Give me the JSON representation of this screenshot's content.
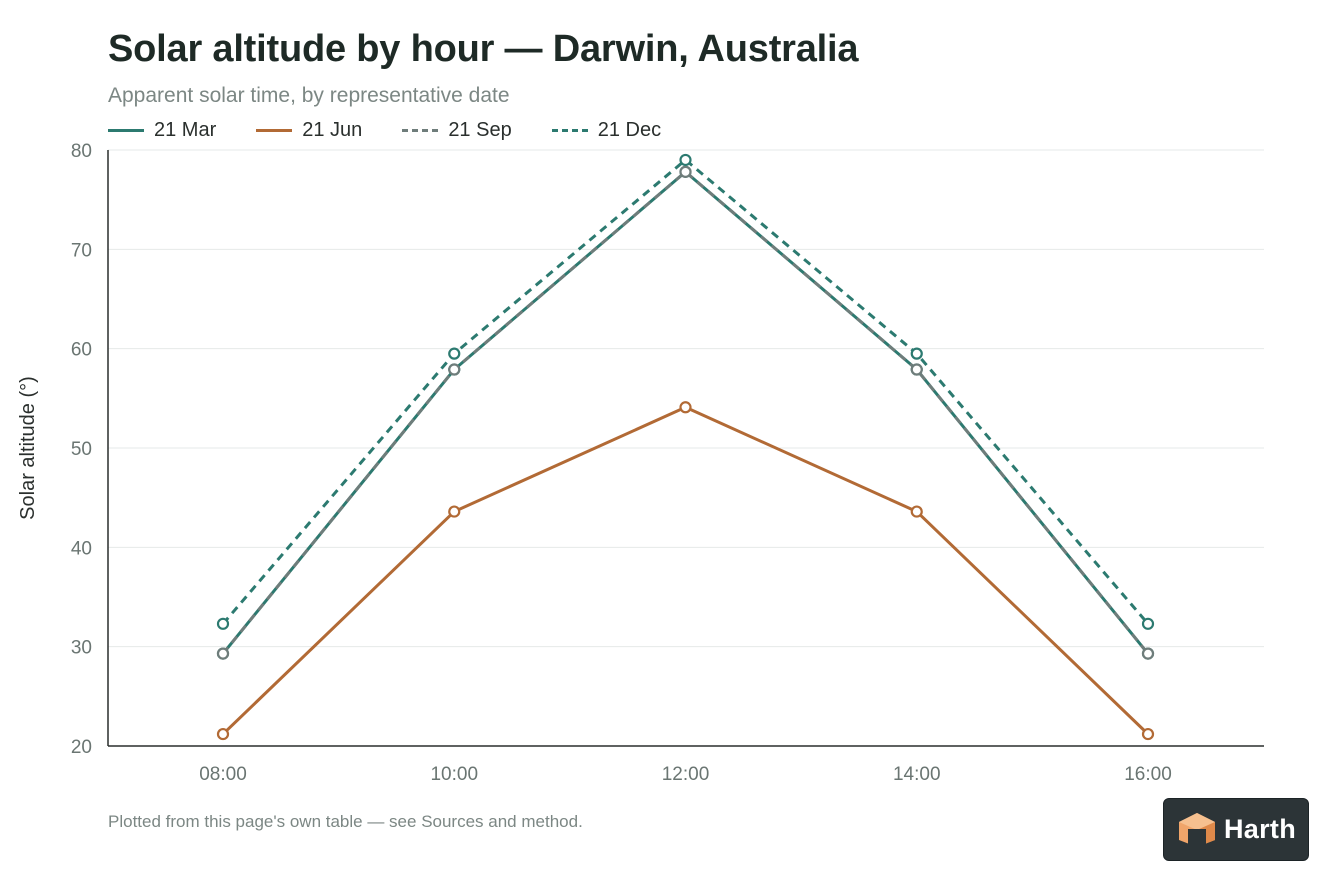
{
  "title": "Solar altitude by hour — Darwin, Australia",
  "subtitle": "Apparent solar time, by representative date",
  "footnote": "Plotted from this page's own table — see Sources and method.",
  "logo": {
    "text": "Harth",
    "icon": "harth-cube-logo-icon"
  },
  "legend": [
    {
      "label": "21 Mar",
      "color": "#2c7a70",
      "dash": "solid"
    },
    {
      "label": "21 Jun",
      "color": "#b26a35",
      "dash": "solid"
    },
    {
      "label": "21 Sep",
      "color": "#6f7d7b",
      "dash": "dashed"
    },
    {
      "label": "21 Dec",
      "color": "#2c7a70",
      "dash": "dashed"
    }
  ],
  "chart_data": {
    "type": "line",
    "title": "Solar altitude by hour — Darwin, Australia",
    "subtitle": "Apparent solar time, by representative date",
    "xlabel": "",
    "ylabel": "Solar altitude (°)",
    "x": [
      "08:00",
      "10:00",
      "12:00",
      "14:00",
      "16:00"
    ],
    "ylim": [
      20,
      80
    ],
    "yticks": [
      20,
      30,
      40,
      50,
      60,
      70,
      80
    ],
    "grid": "horizontal",
    "legend_position": "top-left",
    "series": [
      {
        "name": "21 Mar",
        "values": [
          29.3,
          57.9,
          77.8,
          57.9,
          29.3
        ],
        "color": "#2c7a70",
        "dash": "solid"
      },
      {
        "name": "21 Jun",
        "values": [
          21.2,
          43.6,
          54.1,
          43.6,
          21.2
        ],
        "color": "#b26a35",
        "dash": "solid"
      },
      {
        "name": "21 Sep",
        "values": [
          29.3,
          57.9,
          77.8,
          57.9,
          29.3
        ],
        "color": "#6f7d7b",
        "dash": "dashed"
      },
      {
        "name": "21 Dec",
        "values": [
          32.3,
          59.5,
          79.0,
          59.5,
          32.3
        ],
        "color": "#2c7a70",
        "dash": "dashed"
      }
    ]
  }
}
